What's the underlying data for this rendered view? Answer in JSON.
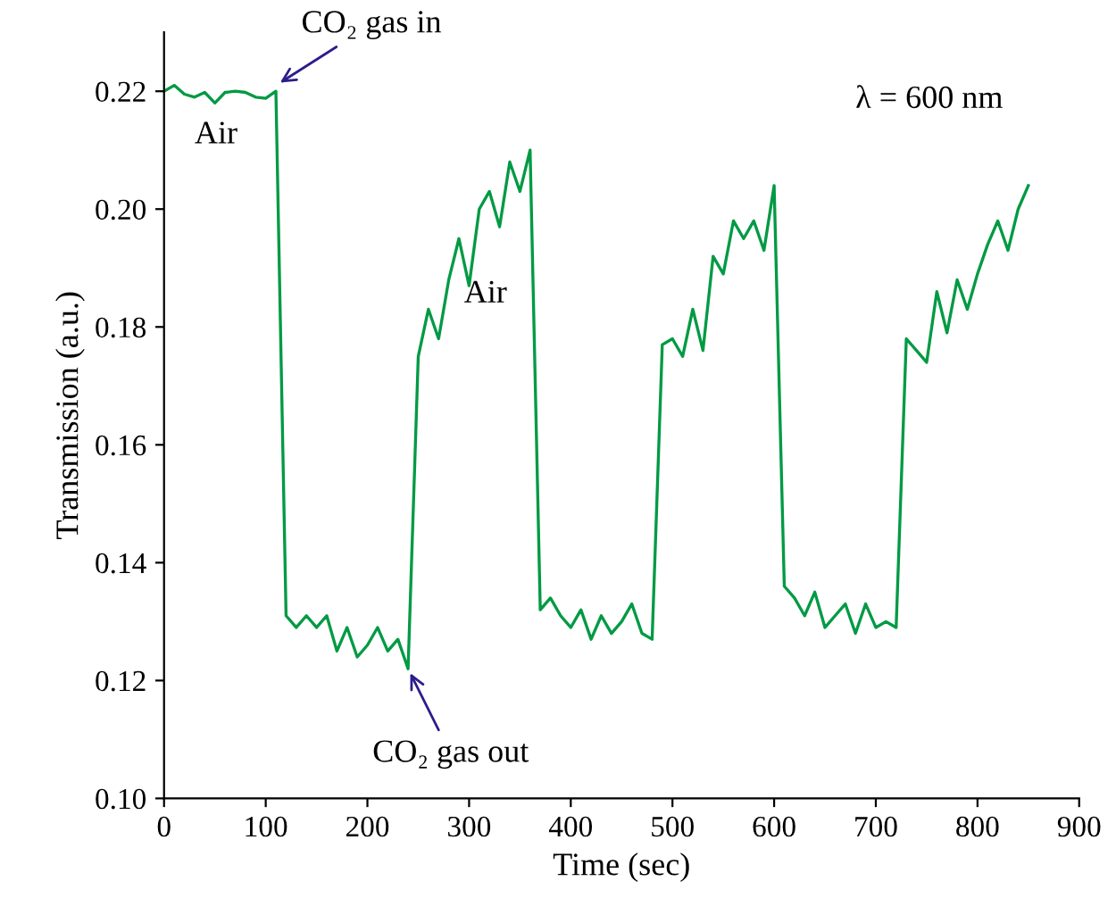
{
  "chart_data": {
    "type": "line",
    "xlabel": "Time (sec)",
    "ylabel": "Transmission (a.u.)",
    "xlim": [
      0,
      900
    ],
    "xticks": [
      0,
      100,
      200,
      300,
      400,
      500,
      600,
      700,
      800,
      900
    ],
    "ylim": [
      0.1,
      0.23
    ],
    "yticks": [
      {
        "value": 0.1,
        "label": "0.10"
      },
      {
        "value": 0.12,
        "label": "0.12"
      },
      {
        "value": 0.14,
        "label": "0.14"
      },
      {
        "value": 0.16,
        "label": "0.16"
      },
      {
        "value": 0.18,
        "label": "0.18"
      },
      {
        "value": 0.2,
        "label": "0.20"
      },
      {
        "value": 0.22,
        "label": "0.22"
      }
    ],
    "grid": false,
    "legend": false,
    "marker": "none",
    "line_style": "solid",
    "series": [
      {
        "color": "#009a44",
        "x": [
          0,
          10,
          20,
          30,
          40,
          50,
          60,
          70,
          80,
          90,
          100,
          110,
          120,
          130,
          140,
          150,
          160,
          170,
          180,
          190,
          200,
          210,
          220,
          230,
          240,
          250,
          260,
          270,
          280,
          290,
          300,
          310,
          320,
          330,
          340,
          350,
          360,
          370,
          380,
          390,
          400,
          410,
          420,
          430,
          440,
          450,
          460,
          470,
          480,
          490,
          500,
          510,
          520,
          530,
          540,
          550,
          560,
          570,
          580,
          590,
          600,
          610,
          620,
          630,
          640,
          650,
          660,
          670,
          680,
          690,
          700,
          710,
          720,
          730,
          740,
          750,
          760,
          770,
          780,
          790,
          800,
          810,
          820,
          830,
          840,
          850
        ],
        "values": [
          0.22,
          0.221,
          0.2195,
          0.219,
          0.2198,
          0.218,
          0.2198,
          0.22,
          0.2198,
          0.219,
          0.2188,
          0.22,
          0.131,
          0.129,
          0.131,
          0.129,
          0.131,
          0.125,
          0.129,
          0.124,
          0.126,
          0.129,
          0.125,
          0.127,
          0.122,
          0.175,
          0.183,
          0.178,
          0.188,
          0.195,
          0.187,
          0.2,
          0.203,
          0.197,
          0.208,
          0.203,
          0.21,
          0.132,
          0.134,
          0.131,
          0.129,
          0.132,
          0.127,
          0.131,
          0.128,
          0.13,
          0.133,
          0.128,
          0.127,
          0.177,
          0.178,
          0.175,
          0.183,
          0.176,
          0.192,
          0.189,
          0.198,
          0.195,
          0.198,
          0.193,
          0.204,
          0.136,
          0.134,
          0.131,
          0.135,
          0.129,
          0.131,
          0.133,
          0.128,
          0.133,
          0.129,
          0.13,
          0.129,
          0.178,
          0.176,
          0.174,
          0.186,
          0.179,
          0.188,
          0.183,
          0.189,
          0.194,
          0.198,
          0.193,
          0.2,
          0.204
        ]
      }
    ],
    "annotations": [
      {
        "text": "CO₂ gas in",
        "x": 110,
        "y": 0.221
      },
      {
        "text": "CO₂ gas out",
        "x": 240,
        "y": 0.122
      },
      "Air",
      "Air",
      "λ = 600 nm"
    ]
  }
}
